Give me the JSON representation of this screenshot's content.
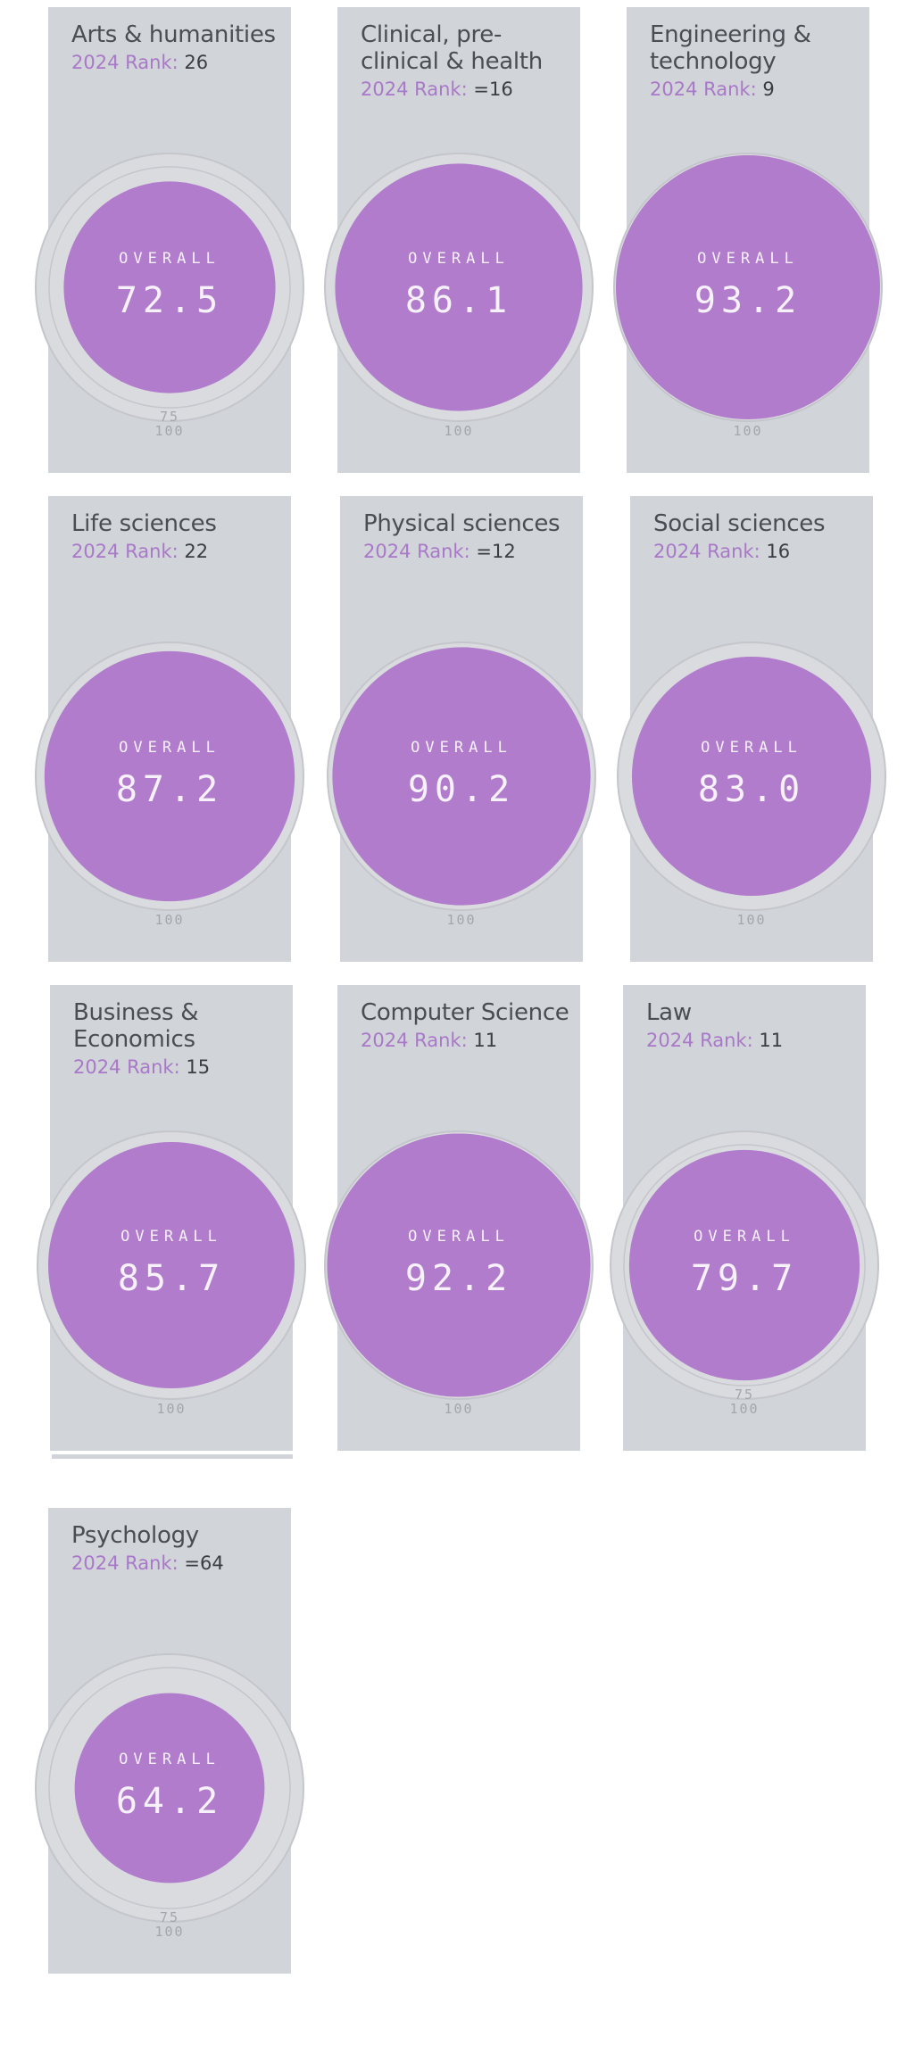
{
  "rank_label": "2024 Rank:",
  "overall_label": "OVERALL",
  "tick_100": "100",
  "tick_75": "75",
  "colors": {
    "card_background": "#d1d4d8",
    "accent": "#a978c9",
    "circle_fill": "#b07ccb",
    "ring": "#c4c6cb"
  },
  "subjects": [
    {
      "name_line1": "Arts & humanities",
      "name_line2": "",
      "rank": "26",
      "score": "72.5",
      "score_fraction": 0.725,
      "show_75": true
    },
    {
      "name_line1": "Clinical, pre-",
      "name_line2": "clinical & health",
      "rank": "=16",
      "score": "86.1",
      "score_fraction": 0.861,
      "show_75": false
    },
    {
      "name_line1": "Engineering &",
      "name_line2": "technology",
      "rank": "9",
      "score": "93.2",
      "score_fraction": 0.932,
      "show_75": false
    },
    {
      "name_line1": "Life sciences",
      "name_line2": "",
      "rank": "22",
      "score": "87.2",
      "score_fraction": 0.872,
      "show_75": false
    },
    {
      "name_line1": "Physical sciences",
      "name_line2": "",
      "rank": "=12",
      "score": "90.2",
      "score_fraction": 0.902,
      "show_75": false
    },
    {
      "name_line1": "Social sciences",
      "name_line2": "",
      "rank": "16",
      "score": "83.0",
      "score_fraction": 0.83,
      "show_75": false
    },
    {
      "name_line1": "Business &",
      "name_line2": "Economics",
      "rank": "15",
      "score": "85.7",
      "score_fraction": 0.857,
      "show_75": false
    },
    {
      "name_line1": "Computer Science",
      "name_line2": "",
      "rank": "11",
      "score": "92.2",
      "score_fraction": 0.922,
      "show_75": false
    },
    {
      "name_line1": "Law",
      "name_line2": "",
      "rank": "11",
      "score": "79.7",
      "score_fraction": 0.797,
      "show_75": true
    },
    {
      "name_line1": "Psychology",
      "name_line2": "",
      "rank": "=64",
      "score": "64.2",
      "score_fraction": 0.642,
      "show_75": true
    }
  ]
}
